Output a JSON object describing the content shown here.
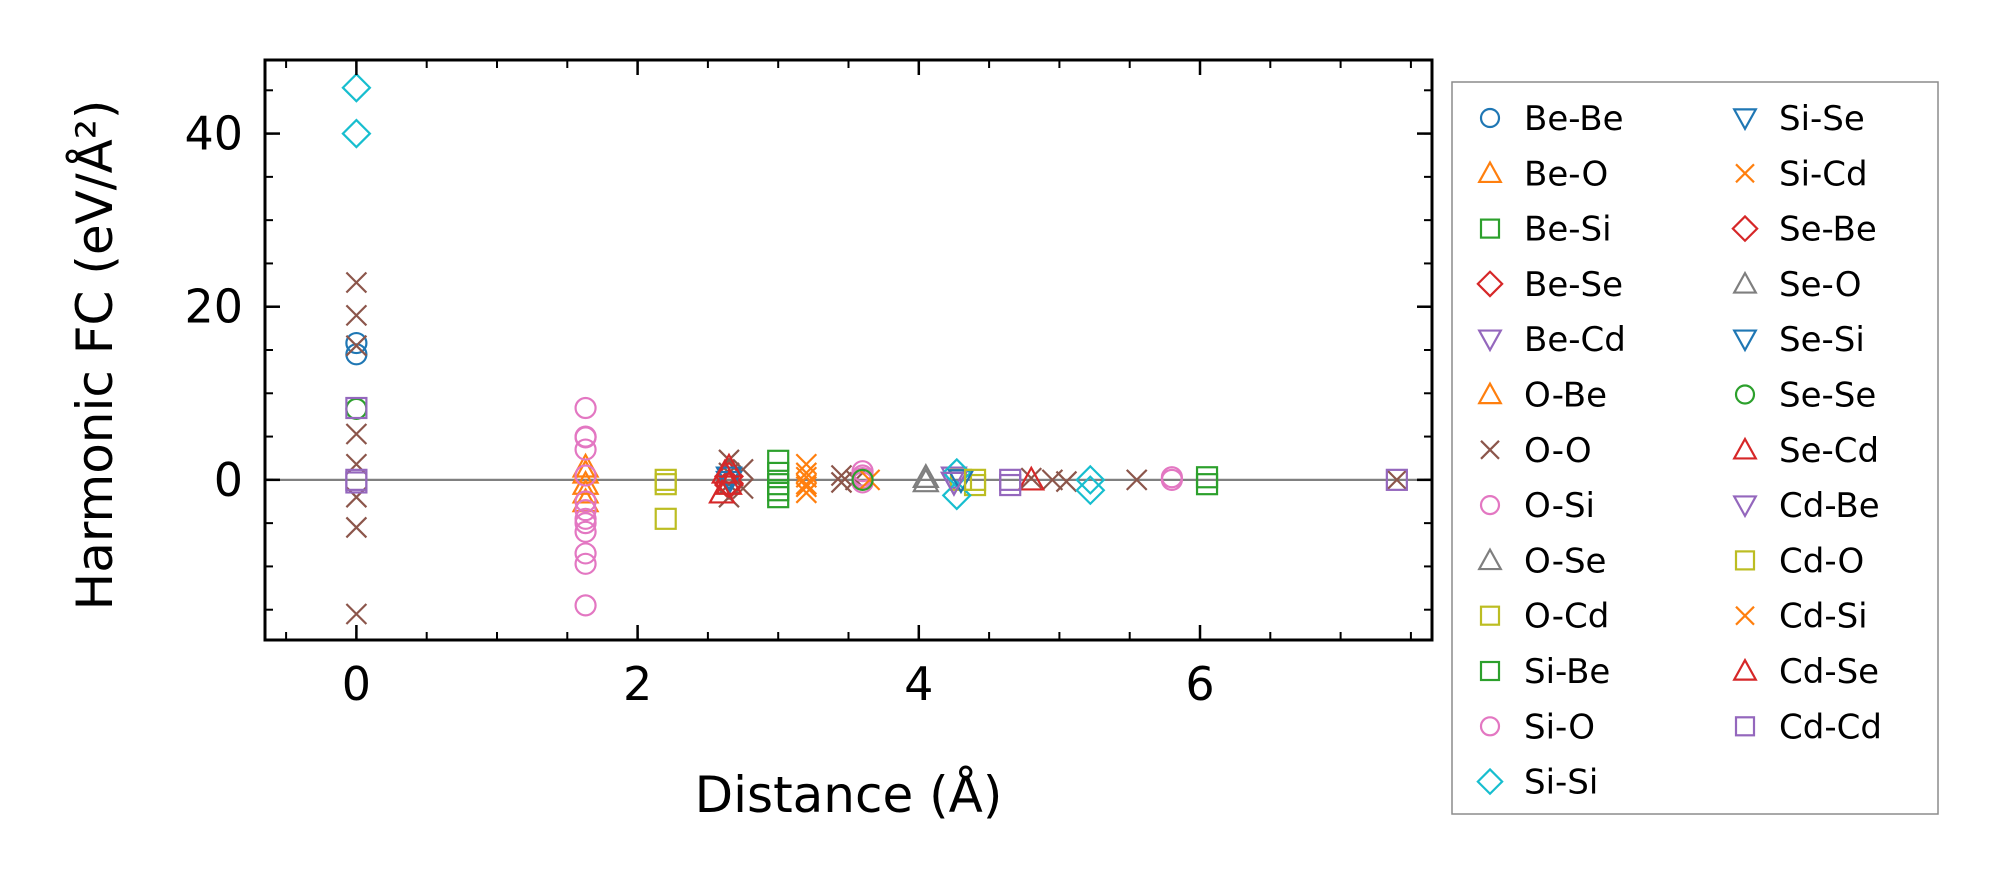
{
  "chart_data": {
    "type": "scatter",
    "xlabel": "Distance (Å)",
    "ylabel": "Harmonic FC (eV/Å²)",
    "xlim": [
      -0.65,
      7.65
    ],
    "ylim": [
      -18.5,
      48.5
    ],
    "x_ticks": [
      0,
      2,
      4,
      6
    ],
    "y_ticks": [
      0,
      20,
      40
    ],
    "x_minor_step": 0.5,
    "y_minor_step": 5,
    "zero_line": true,
    "grid": false,
    "legend_placement": "outside-right",
    "legend_columns": 2,
    "series": [
      {
        "name": "Be-Be",
        "marker": "circle",
        "color": "#1f77b4",
        "points": [
          [
            0,
            15.8
          ],
          [
            0,
            14.5
          ]
        ]
      },
      {
        "name": "Be-O",
        "marker": "triangle-up",
        "color": "#ff7f0e",
        "points": [
          [
            1.63,
            1.5
          ],
          [
            1.63,
            -0.5
          ],
          [
            1.63,
            -1.5
          ]
        ]
      },
      {
        "name": "Be-Si",
        "marker": "square",
        "color": "#2ca02c",
        "points": [
          [
            3.0,
            0.8
          ],
          [
            3.0,
            -1.2
          ]
        ]
      },
      {
        "name": "Be-Se",
        "marker": "diamond",
        "color": "#d62728",
        "points": [
          [
            2.65,
            0.4
          ],
          [
            2.65,
            -0.6
          ]
        ]
      },
      {
        "name": "Be-Cd",
        "marker": "triangle-down",
        "color": "#9467bd",
        "points": [
          [
            4.25,
            0.3
          ],
          [
            4.25,
            -0.3
          ]
        ]
      },
      {
        "name": "O-Be",
        "marker": "triangle-up",
        "color": "#ff7f0e",
        "points": [
          [
            1.63,
            0.8
          ],
          [
            1.63,
            -2.5
          ]
        ]
      },
      {
        "name": "O-O",
        "marker": "x",
        "color": "#8c564b",
        "points": [
          [
            0,
            22.8
          ],
          [
            0,
            19.0
          ],
          [
            0,
            15.5
          ],
          [
            0,
            5.3
          ],
          [
            0,
            1.8
          ],
          [
            0,
            -2.0
          ],
          [
            0,
            -5.5
          ],
          [
            0,
            -15.5
          ],
          [
            2.65,
            2.3
          ],
          [
            2.65,
            0.8
          ],
          [
            2.65,
            -0.5
          ],
          [
            2.65,
            -2.0
          ],
          [
            2.75,
            1.2
          ],
          [
            2.75,
            -1.0
          ],
          [
            3.45,
            0.5
          ],
          [
            3.45,
            -0.3
          ],
          [
            3.55,
            0.0
          ],
          [
            4.8,
            0.2
          ],
          [
            4.95,
            0.0
          ],
          [
            5.05,
            -0.2
          ],
          [
            5.55,
            0.0
          ],
          [
            7.4,
            0.0
          ]
        ]
      },
      {
        "name": "O-Si",
        "marker": "circle",
        "color": "#e377c2",
        "points": [
          [
            1.63,
            8.3
          ],
          [
            1.63,
            4.9
          ],
          [
            1.63,
            3.5
          ],
          [
            1.63,
            0.5
          ],
          [
            1.63,
            -2.5
          ],
          [
            1.63,
            -3.5
          ],
          [
            1.63,
            -5.0
          ],
          [
            1.63,
            -6.0
          ],
          [
            1.63,
            -8.5
          ],
          [
            1.63,
            -9.7
          ],
          [
            1.63,
            -14.5
          ],
          [
            3.6,
            1.0
          ],
          [
            3.6,
            0.2
          ],
          [
            3.6,
            -0.3
          ],
          [
            5.8,
            0.0
          ],
          [
            5.8,
            0.3
          ]
        ]
      },
      {
        "name": "O-Se",
        "marker": "triangle-up",
        "color": "#7f7f7f",
        "points": [
          [
            4.05,
            -0.2
          ]
        ]
      },
      {
        "name": "O-Cd",
        "marker": "square",
        "color": "#bcbd22",
        "points": [
          [
            2.2,
            0.0
          ],
          [
            2.2,
            -4.5
          ],
          [
            4.3,
            0.0
          ],
          [
            4.4,
            -0.6
          ]
        ]
      },
      {
        "name": "Si-Be",
        "marker": "square",
        "color": "#2ca02c",
        "points": [
          [
            3.0,
            2.2
          ],
          [
            3.0,
            -2.0
          ],
          [
            3.0,
            -0.5
          ],
          [
            6.05,
            0.3
          ],
          [
            6.05,
            -0.5
          ]
        ]
      },
      {
        "name": "Si-O",
        "marker": "circle",
        "color": "#e377c2",
        "points": [
          [
            1.63,
            5.0
          ],
          [
            1.63,
            -4.5
          ],
          [
            3.6,
            0.5
          ]
        ]
      },
      {
        "name": "Si-Si",
        "marker": "diamond",
        "color": "#17becf",
        "points": [
          [
            0,
            45.3
          ],
          [
            0,
            40.0
          ],
          [
            4.27,
            0.8
          ],
          [
            4.27,
            -1.8
          ],
          [
            5.22,
            0.0
          ],
          [
            5.22,
            -1.2
          ]
        ]
      },
      {
        "name": "Si-Se",
        "marker": "triangle-down",
        "color": "#1f77b4",
        "points": [
          [
            2.65,
            0.3
          ],
          [
            4.3,
            0.0
          ]
        ]
      },
      {
        "name": "Si-Cd",
        "marker": "x",
        "color": "#ff7f0e",
        "points": [
          [
            3.2,
            1.8
          ],
          [
            3.2,
            0.8
          ],
          [
            3.2,
            -0.5
          ],
          [
            3.2,
            -1.5
          ],
          [
            3.65,
            0.0
          ]
        ]
      },
      {
        "name": "Se-Be",
        "marker": "diamond",
        "color": "#d62728",
        "points": [
          [
            2.65,
            -0.4
          ]
        ]
      },
      {
        "name": "Se-O",
        "marker": "triangle-up",
        "color": "#7f7f7f",
        "points": [
          [
            4.05,
            0.3
          ]
        ]
      },
      {
        "name": "Se-Si",
        "marker": "triangle-down",
        "color": "#1f77b4",
        "points": [
          [
            2.65,
            -0.2
          ]
        ]
      },
      {
        "name": "Se-Se",
        "marker": "circle",
        "color": "#2ca02c",
        "points": [
          [
            0,
            8.2
          ],
          [
            3.6,
            0.0
          ]
        ]
      },
      {
        "name": "Se-Cd",
        "marker": "triangle-up",
        "color": "#d62728",
        "points": [
          [
            2.65,
            1.5
          ],
          [
            2.65,
            -0.5
          ],
          [
            2.6,
            -1.5
          ],
          [
            4.8,
            0.0
          ]
        ]
      },
      {
        "name": "Cd-Be",
        "marker": "triangle-down",
        "color": "#9467bd",
        "points": [
          [
            4.25,
            -0.3
          ]
        ]
      },
      {
        "name": "Cd-O",
        "marker": "square",
        "color": "#bcbd22",
        "points": [
          [
            2.2,
            -0.5
          ],
          [
            4.4,
            0.0
          ]
        ]
      },
      {
        "name": "Cd-Si",
        "marker": "x",
        "color": "#ff7f0e",
        "points": [
          [
            3.2,
            0.3
          ],
          [
            3.2,
            -0.8
          ]
        ]
      },
      {
        "name": "Cd-Se",
        "marker": "triangle-up",
        "color": "#d62728",
        "points": [
          [
            2.62,
            0.8
          ]
        ]
      },
      {
        "name": "Cd-Cd",
        "marker": "square",
        "color": "#9467bd",
        "points": [
          [
            0,
            8.3
          ],
          [
            0,
            0.0
          ],
          [
            0,
            -0.3
          ],
          [
            4.65,
            0.0
          ],
          [
            4.65,
            -0.6
          ],
          [
            7.4,
            0.0
          ]
        ]
      }
    ]
  }
}
